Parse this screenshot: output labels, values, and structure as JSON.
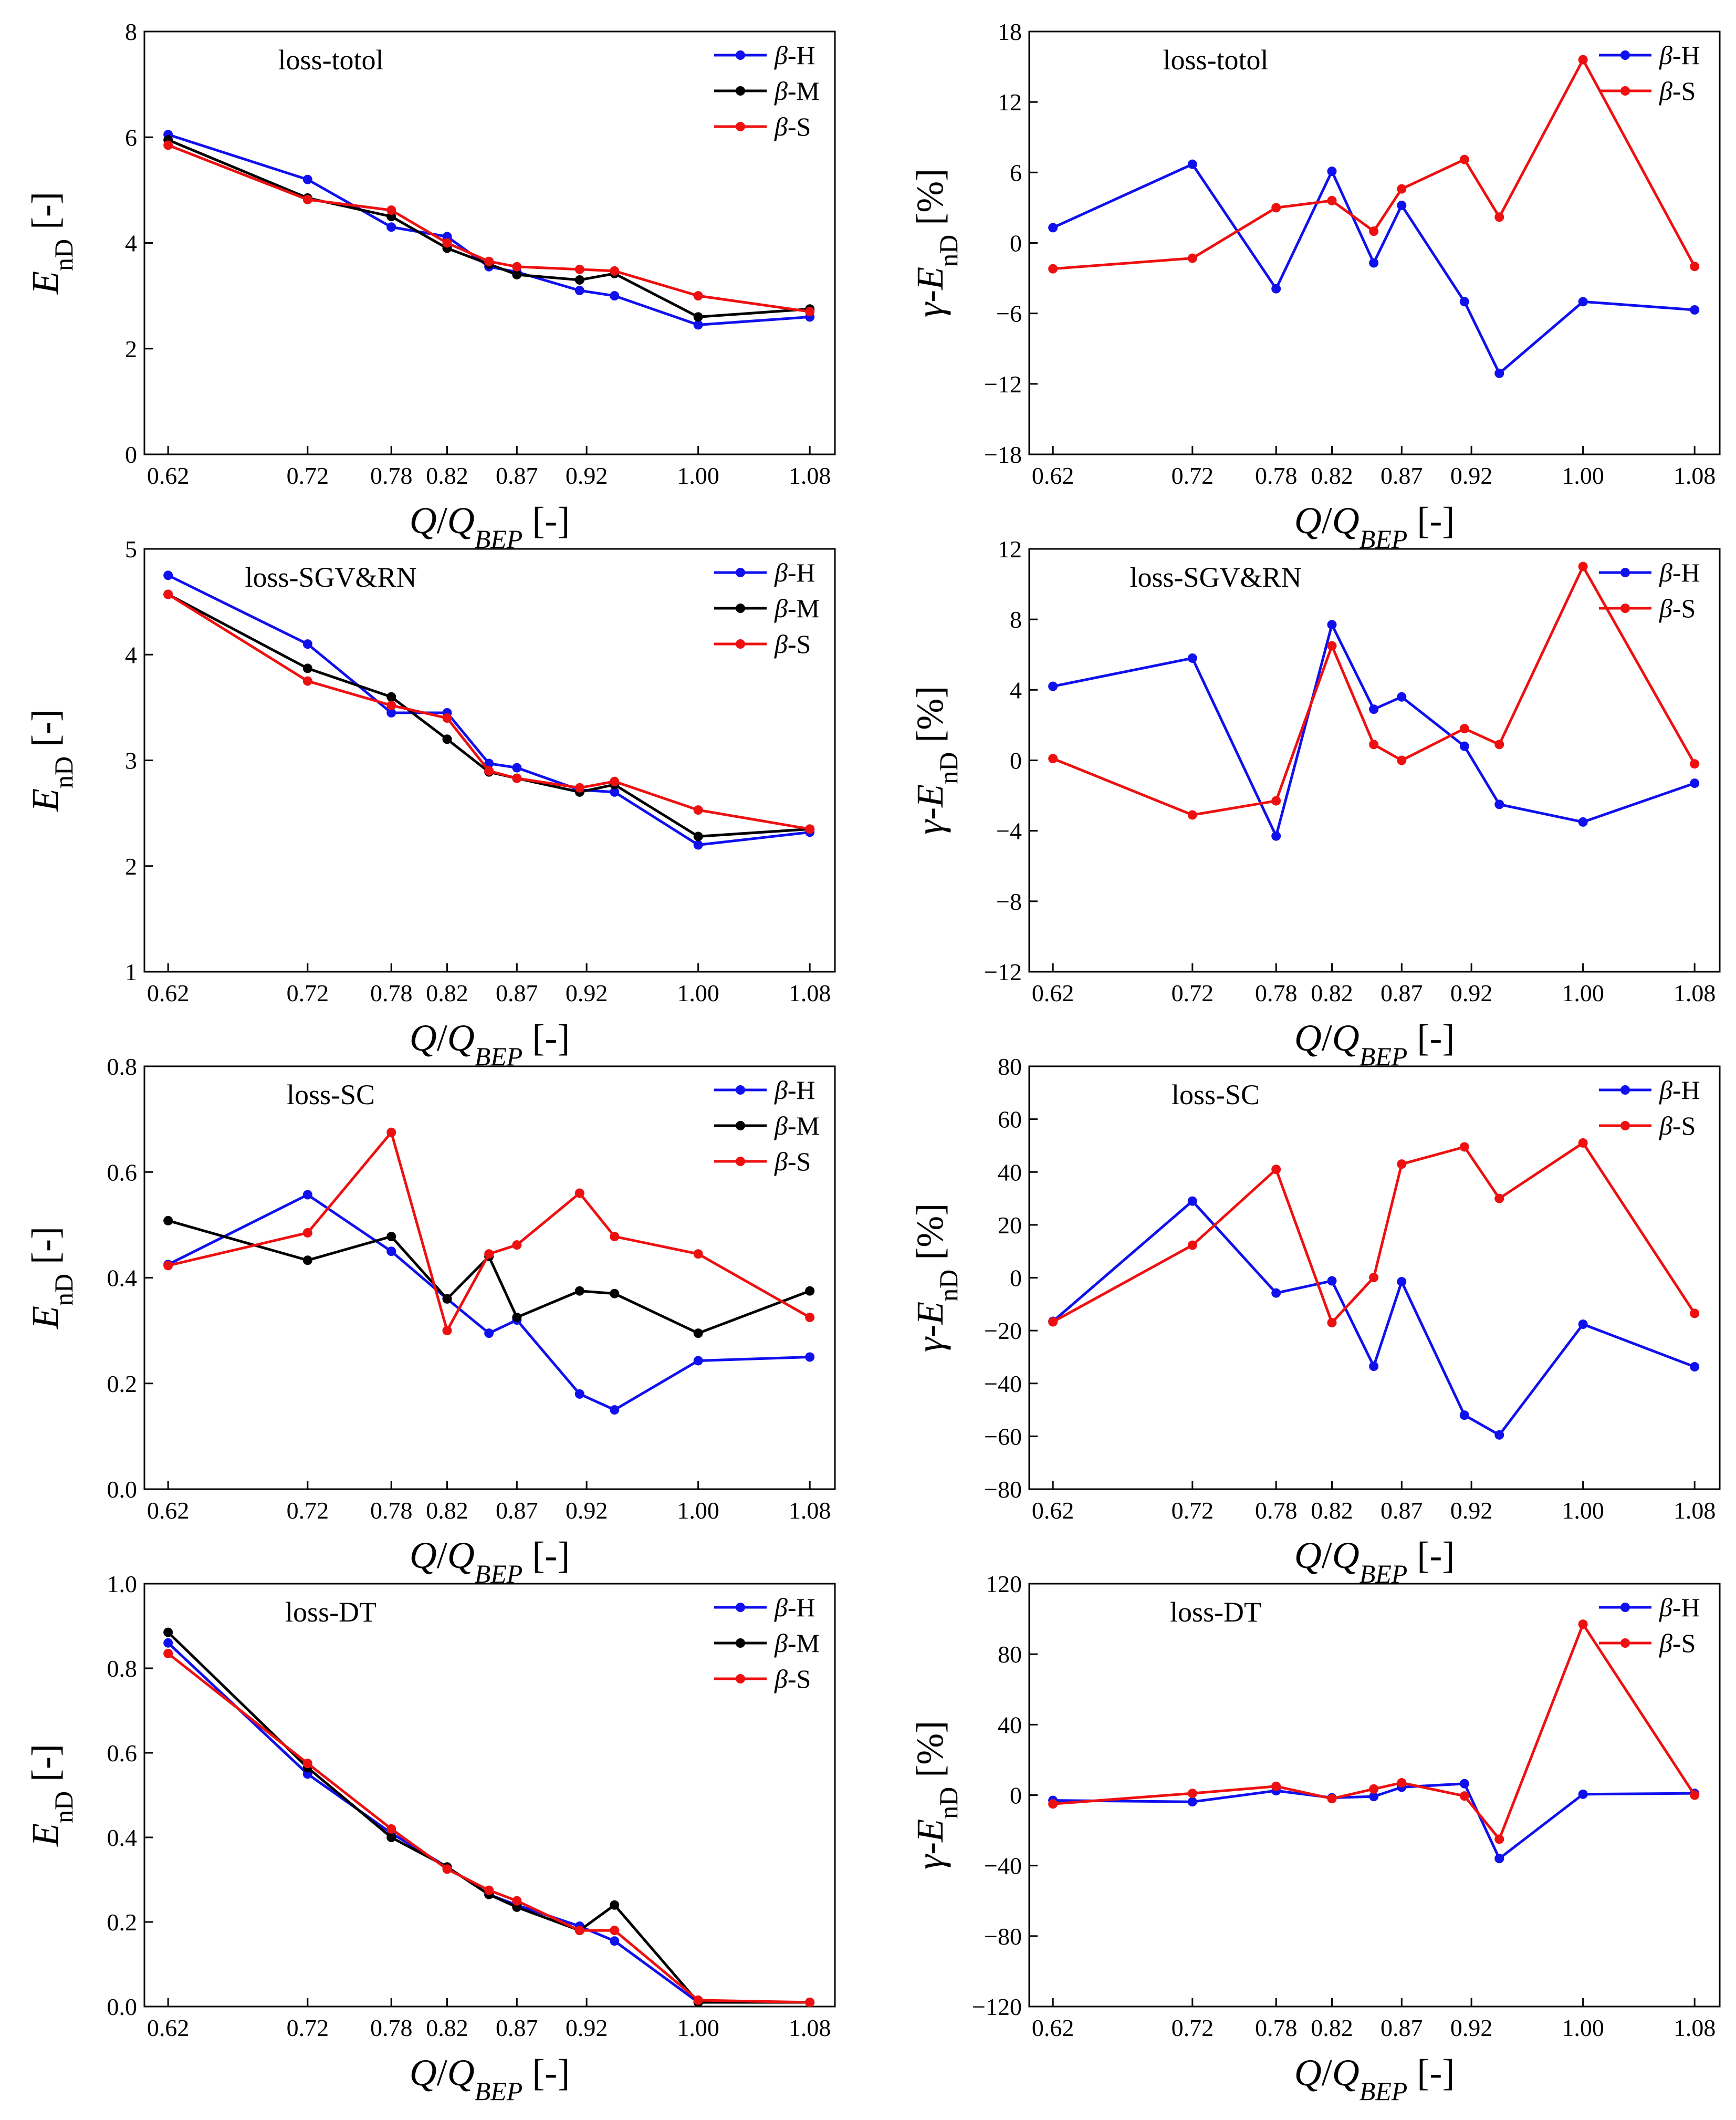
{
  "colors": {
    "beta_H": "#1010ee",
    "beta_M": "#000000",
    "beta_S": "#ee1010"
  },
  "common": {
    "x_positions": [
      0.62,
      0.72,
      0.78,
      0.82,
      0.85,
      0.87,
      0.915,
      0.94,
      1.0,
      1.08
    ],
    "x_ticks": [
      0.62,
      0.72,
      0.78,
      0.82,
      0.87,
      0.92,
      1.0,
      1.08
    ],
    "x_tick_labels": [
      "0.62",
      "0.72",
      "0.78",
      "0.82",
      "0.87",
      "0.92",
      "1.00",
      "1.08"
    ],
    "x_range": [
      0.603,
      1.098
    ]
  },
  "chart_data": [
    {
      "type": "line",
      "title": "loss-totol",
      "xlabel": "Q/QBEP [-]",
      "ylabel": "EnD [-]",
      "ylim": [
        0,
        8
      ],
      "yticks": [
        0,
        2,
        4,
        6,
        8
      ],
      "ytick_labels": [
        "0",
        "2",
        "4",
        "6",
        "8"
      ],
      "series": [
        {
          "name": "β-H",
          "color_key": "beta_H",
          "values": [
            6.05,
            5.2,
            4.3,
            4.12,
            3.55,
            3.45,
            3.1,
            3.0,
            2.45,
            2.6
          ]
        },
        {
          "name": "β-M",
          "color_key": "beta_M",
          "values": [
            5.95,
            4.85,
            4.5,
            3.9,
            3.6,
            3.4,
            3.3,
            3.42,
            2.6,
            2.75
          ]
        },
        {
          "name": "β-S",
          "color_key": "beta_S",
          "values": [
            5.85,
            4.82,
            4.62,
            4.0,
            3.65,
            3.55,
            3.5,
            3.47,
            3.0,
            2.7
          ]
        }
      ]
    },
    {
      "type": "line",
      "title": "loss-totol",
      "xlabel": "Q/QBEP [-]",
      "ylabel": "γ-EnD [%]",
      "ylim": [
        -18,
        18
      ],
      "yticks": [
        -18,
        -12,
        -6,
        0,
        6,
        12,
        18
      ],
      "ytick_labels": [
        "−18",
        "−12",
        "−6",
        "0",
        "6",
        "12",
        "18"
      ],
      "series": [
        {
          "name": "β-H",
          "color_key": "beta_H",
          "values": [
            1.3,
            6.7,
            -3.9,
            6.1,
            -1.7,
            3.2,
            -5.0,
            -11.1,
            -5.0,
            -5.7
          ]
        },
        {
          "name": "β-S",
          "color_key": "beta_S",
          "values": [
            -2.2,
            -1.3,
            3.0,
            3.6,
            1.0,
            4.6,
            7.1,
            2.2,
            15.6,
            -2.0
          ]
        }
      ]
    },
    {
      "type": "line",
      "title": "loss-SGV&RN",
      "xlabel": "Q/QBEP [-]",
      "ylabel": "EnD [-]",
      "ylim": [
        1,
        5
      ],
      "yticks": [
        1,
        2,
        3,
        4,
        5
      ],
      "ytick_labels": [
        "1",
        "2",
        "3",
        "4",
        "5"
      ],
      "series": [
        {
          "name": "β-H",
          "color_key": "beta_H",
          "values": [
            4.75,
            4.1,
            3.45,
            3.45,
            2.97,
            2.93,
            2.72,
            2.7,
            2.2,
            2.32
          ]
        },
        {
          "name": "β-M",
          "color_key": "beta_M",
          "values": [
            4.57,
            3.87,
            3.6,
            3.2,
            2.89,
            2.83,
            2.7,
            2.77,
            2.28,
            2.35
          ]
        },
        {
          "name": "β-S",
          "color_key": "beta_S",
          "values": [
            4.57,
            3.75,
            3.52,
            3.4,
            2.9,
            2.83,
            2.74,
            2.8,
            2.53,
            2.35
          ]
        }
      ]
    },
    {
      "type": "line",
      "title": "loss-SGV&RN",
      "xlabel": "Q/QBEP [-]",
      "ylabel": "γ-EnD [%]",
      "ylim": [
        -12,
        12
      ],
      "yticks": [
        -12,
        -8,
        -4,
        0,
        4,
        8,
        12
      ],
      "ytick_labels": [
        "−12",
        "−8",
        "−4",
        "0",
        "4",
        "8",
        "12"
      ],
      "series": [
        {
          "name": "β-H",
          "color_key": "beta_H",
          "values": [
            4.2,
            5.8,
            -4.3,
            7.7,
            2.9,
            3.6,
            0.8,
            -2.5,
            -3.5,
            -1.3
          ]
        },
        {
          "name": "β-S",
          "color_key": "beta_S",
          "values": [
            0.1,
            -3.1,
            -2.3,
            6.5,
            0.9,
            0.0,
            1.8,
            0.9,
            11.0,
            -0.2
          ]
        }
      ]
    },
    {
      "type": "line",
      "title": "loss-SC",
      "xlabel": "Q/QBEP [-]",
      "ylabel": "EnD [-]",
      "ylim": [
        0,
        0.8
      ],
      "yticks": [
        0,
        0.2,
        0.4,
        0.6,
        0.8
      ],
      "ytick_labels": [
        "0.0",
        "0.2",
        "0.4",
        "0.6",
        "0.8"
      ],
      "series": [
        {
          "name": "β-H",
          "color_key": "beta_H",
          "values": [
            0.425,
            0.557,
            0.45,
            0.36,
            0.295,
            0.32,
            0.18,
            0.15,
            0.243,
            0.25
          ]
        },
        {
          "name": "β-M",
          "color_key": "beta_M",
          "values": [
            0.508,
            0.433,
            0.478,
            0.36,
            0.44,
            0.325,
            0.375,
            0.37,
            0.295,
            0.375
          ]
        },
        {
          "name": "β-S",
          "color_key": "beta_S",
          "values": [
            0.423,
            0.485,
            0.675,
            0.3,
            0.445,
            0.462,
            0.56,
            0.478,
            0.445,
            0.325
          ]
        }
      ]
    },
    {
      "type": "line",
      "title": "loss-SC",
      "xlabel": "Q/QBEP [-]",
      "ylabel": "γ-EnD [%]",
      "ylim": [
        -80,
        80
      ],
      "yticks": [
        -80,
        -60,
        -40,
        -20,
        0,
        20,
        40,
        60,
        80
      ],
      "ytick_labels": [
        "−80",
        "−60",
        "−40",
        "−20",
        "0",
        "20",
        "40",
        "60",
        "80"
      ],
      "series": [
        {
          "name": "β-H",
          "color_key": "beta_H",
          "values": [
            -16.5,
            29,
            -5.8,
            -1.2,
            -33.5,
            -1.5,
            -52,
            -59.5,
            -17.6,
            -33.7
          ]
        },
        {
          "name": "β-S",
          "color_key": "beta_S",
          "values": [
            -16.7,
            12.3,
            41,
            -17.0,
            0.1,
            43,
            49.5,
            30,
            51,
            -13.5
          ]
        }
      ]
    },
    {
      "type": "line",
      "title": "loss-DT",
      "xlabel": "Q/QBEP [-]",
      "ylabel": "EnD [-]",
      "ylim": [
        0,
        1.0
      ],
      "yticks": [
        0,
        0.2,
        0.4,
        0.6,
        0.8,
        1.0
      ],
      "ytick_labels": [
        "0.0",
        "0.2",
        "0.4",
        "0.6",
        "0.8",
        "1.0"
      ],
      "series": [
        {
          "name": "β-H",
          "color_key": "beta_H",
          "values": [
            0.86,
            0.55,
            0.41,
            0.33,
            0.265,
            0.24,
            0.19,
            0.155,
            0.01,
            0.01
          ]
        },
        {
          "name": "β-M",
          "color_key": "beta_M",
          "values": [
            0.885,
            0.565,
            0.4,
            0.33,
            0.265,
            0.235,
            0.18,
            0.24,
            0.01,
            0.01
          ]
        },
        {
          "name": "β-S",
          "color_key": "beta_S",
          "values": [
            0.835,
            0.575,
            0.42,
            0.325,
            0.275,
            0.25,
            0.18,
            0.18,
            0.015,
            0.01
          ]
        }
      ]
    },
    {
      "type": "line",
      "title": "loss-DT",
      "xlabel": "Q/QBEP [-]",
      "ylabel": "γ-EnD [%]",
      "ylim": [
        -120,
        120
      ],
      "yticks": [
        -120,
        -80,
        -40,
        0,
        40,
        80,
        120
      ],
      "ytick_labels": [
        "−120",
        "−80",
        "−40",
        "0",
        "40",
        "80",
        "120"
      ],
      "series": [
        {
          "name": "β-H",
          "color_key": "beta_H",
          "values": [
            -3.0,
            -3.8,
            2.5,
            -1.5,
            -0.8,
            4.5,
            6.5,
            -36.0,
            0.5,
            1.0
          ]
        },
        {
          "name": "β-S",
          "color_key": "beta_S",
          "values": [
            -5.0,
            1.0,
            5.0,
            -2.0,
            3.5,
            7.0,
            -0.5,
            -25.0,
            97.0,
            0.0
          ]
        }
      ]
    }
  ]
}
